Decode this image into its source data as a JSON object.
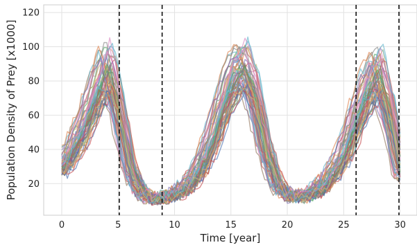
{
  "chart_data": {
    "type": "line",
    "title": "",
    "xlabel": "Time [year]",
    "ylabel": "Population Density of Prey [x1000]",
    "xlim": [
      -1.6,
      31.5
    ],
    "ylim": [
      1.5,
      124.5
    ],
    "x_ticks": [
      0,
      5,
      10,
      15,
      20,
      25,
      30
    ],
    "y_ticks": [
      20,
      40,
      60,
      80,
      100,
      120
    ],
    "grid": true,
    "legend": "none",
    "vertical_dashed_lines": [
      5.1,
      8.9,
      26.1,
      29.9
    ],
    "series_count": 60,
    "palette": [
      "#4c72b0",
      "#dd8452",
      "#55a868",
      "#c44e52",
      "#8172b3",
      "#937860",
      "#da8bc3",
      "#8c8c8c",
      "#ccb974",
      "#64b5cd"
    ],
    "ensemble_mean": {
      "x": [
        0,
        1,
        2,
        3,
        4,
        5,
        6,
        7,
        8,
        9,
        10,
        11,
        12,
        13,
        14,
        15,
        16,
        17,
        18,
        19,
        20,
        21,
        22,
        23,
        24,
        25,
        26,
        27,
        28,
        29,
        30
      ],
      "values": [
        30,
        40,
        55,
        72,
        88,
        62,
        28,
        15,
        11,
        12,
        14,
        18,
        26,
        40,
        60,
        80,
        88,
        72,
        40,
        20,
        13,
        12,
        14,
        18,
        26,
        38,
        56,
        74,
        85,
        60,
        25
      ]
    }
  }
}
